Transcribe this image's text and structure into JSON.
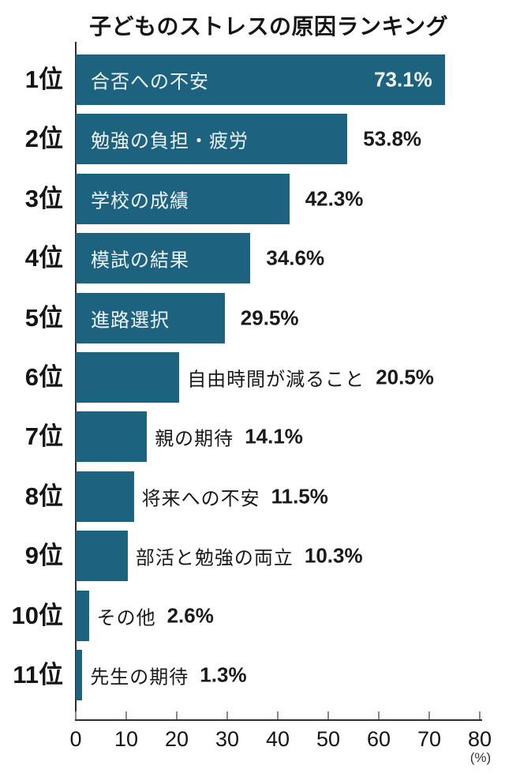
{
  "chart_data": {
    "type": "bar",
    "orientation": "horizontal",
    "title": "子どものストレスの原因ランキング",
    "x_unit": "(%)",
    "xlim": [
      0,
      80
    ],
    "x_ticks": [
      0,
      10,
      20,
      30,
      40,
      50,
      60,
      70,
      80
    ],
    "grid": false,
    "legend": false,
    "bar_color": "#1d6380",
    "categories": [
      "1位",
      "2位",
      "3位",
      "4位",
      "5位",
      "6位",
      "7位",
      "8位",
      "9位",
      "10位",
      "11位"
    ],
    "labels": [
      "合否への不安",
      "勉強の負担・疲労",
      "学校の成績",
      "模試の結果",
      "進路選択",
      "自由時間が減ること",
      "親の期待",
      "将来への不安",
      "部活と勉強の両立",
      "その他",
      "先生の期待"
    ],
    "values": [
      73.1,
      53.8,
      42.3,
      34.6,
      29.5,
      20.5,
      14.1,
      11.5,
      10.3,
      2.6,
      1.3
    ],
    "value_labels": [
      "73.1%",
      "53.8%",
      "42.3%",
      "34.6%",
      "29.5%",
      "20.5%",
      "14.1%",
      "11.5%",
      "10.3%",
      "2.6%",
      "1.3%"
    ],
    "label_placement": [
      "inside",
      "inside",
      "inside",
      "inside",
      "inside",
      "outside",
      "outside",
      "outside",
      "outside",
      "outside",
      "outside"
    ],
    "value_placement": [
      "inside",
      "outside",
      "outside",
      "outside",
      "outside",
      "outside",
      "outside",
      "outside",
      "outside",
      "outside",
      "outside"
    ]
  }
}
